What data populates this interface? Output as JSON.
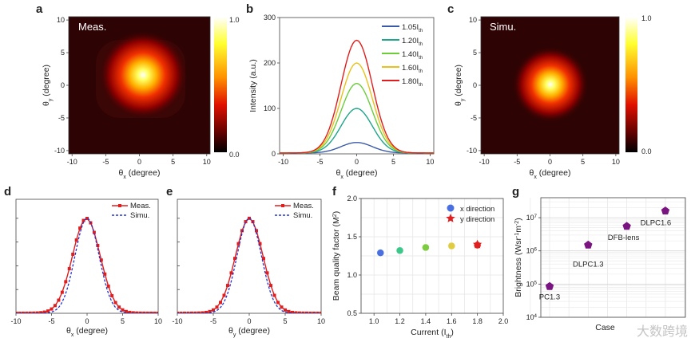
{
  "watermark": "大数跨境",
  "chart_data": [
    {
      "panel": "a",
      "type": "heatmap",
      "annotation": "Meas.",
      "xlabel": "θx (degree)",
      "ylabel": "θy (degree)",
      "xlim": [
        -10.5,
        10.5
      ],
      "ylim": [
        -10.5,
        10.5
      ],
      "xticks": [
        "-10",
        "-5",
        "0",
        "5",
        "10"
      ],
      "yticks": [
        "-10",
        "-5",
        "0",
        "5",
        "10"
      ],
      "colorbar": {
        "min_label": "0.0",
        "max_label": "1.0",
        "colormap": "hot"
      },
      "spot_center_deg": [
        0.5,
        0.8
      ],
      "spot_fwhm_deg": 4.6
    },
    {
      "panel": "b",
      "type": "line",
      "xlabel": "θx (degree)",
      "ylabel": "Intensity (a.u.)",
      "xlim": [
        -10.5,
        10.5
      ],
      "ylim": [
        0,
        300
      ],
      "xticks": [
        "-10",
        "-5",
        "0",
        "5",
        "10"
      ],
      "yticks": [
        "0",
        "100",
        "200",
        "300"
      ],
      "legend_position": "top-right",
      "series": [
        {
          "name": "1.05I",
          "sub": "th",
          "peak": 25,
          "color": "#3a5aa8"
        },
        {
          "name": "1.20I",
          "sub": "th",
          "peak": 100,
          "color": "#1fa58a"
        },
        {
          "name": "1.40I",
          "sub": "th",
          "peak": 155,
          "color": "#6ccc3c"
        },
        {
          "name": "1.60I",
          "sub": "th",
          "peak": 200,
          "color": "#e8c21a"
        },
        {
          "name": "1.80I",
          "sub": "th",
          "peak": 250,
          "color": "#e01e1e"
        }
      ],
      "fwhm_deg": 5.0,
      "baseline": 2
    },
    {
      "panel": "c",
      "type": "heatmap",
      "annotation": "Simu.",
      "xlabel": "θx (degree)",
      "ylabel": "θy (degree)",
      "xlim": [
        -10.5,
        10.5
      ],
      "ylim": [
        -10.5,
        10.5
      ],
      "xticks": [
        "-10",
        "-5",
        "0",
        "5",
        "10"
      ],
      "yticks": [
        "-10",
        "-5",
        "0",
        "5",
        "10"
      ],
      "colorbar": {
        "min_label": "0.0",
        "max_label": "1.0",
        "colormap": "hot"
      },
      "spot_center_deg": [
        0,
        0
      ],
      "spot_fwhm_deg": 4.0
    },
    {
      "panel": "d",
      "type": "line",
      "xlabel": "θx (degree)",
      "ylabel": "",
      "xlim": [
        -10,
        10
      ],
      "ylim": [
        0,
        1.2
      ],
      "xticks": [
        "-10",
        "-5",
        "0",
        "5",
        "10"
      ],
      "legend_position": "top-right",
      "series": [
        {
          "name": "Meas.",
          "color": "#e01e1e",
          "style": "solid-square-markers",
          "fwhm_deg": 4.6,
          "peak_x": -0.1
        },
        {
          "name": "Simu.",
          "color": "#2233cc",
          "style": "dashed",
          "fwhm_deg": 4.0,
          "peak_x": 0
        }
      ]
    },
    {
      "panel": "e",
      "type": "line",
      "xlabel": "θy (degree)",
      "ylabel": "",
      "xlim": [
        -10,
        10
      ],
      "ylim": [
        0,
        1.2
      ],
      "xticks": [
        "-10",
        "-5",
        "0",
        "5",
        "10"
      ],
      "legend_position": "top-right",
      "series": [
        {
          "name": "Meas.",
          "color": "#e01e1e",
          "style": "solid-square-markers",
          "fwhm_deg": 4.5,
          "peak_x": 0
        },
        {
          "name": "Simu.",
          "color": "#2233cc",
          "style": "dashed",
          "fwhm_deg": 4.0,
          "peak_x": 0
        }
      ]
    },
    {
      "panel": "f",
      "type": "scatter",
      "xlabel": "Current (Ith)",
      "ylabel": "Beam quality factor (M2)",
      "xlim": [
        0.9,
        2.0
      ],
      "ylim": [
        0.5,
        2.0
      ],
      "xticks": [
        "1.0",
        "1.2",
        "1.4",
        "1.6",
        "1.8",
        "2.0"
      ],
      "yticks": [
        "0.5",
        "1.0",
        "1.5",
        "2.0"
      ],
      "grid": true,
      "legend_position": "top-right",
      "legend": [
        "x direction",
        "y direction"
      ],
      "x": [
        1.05,
        1.2,
        1.4,
        1.6,
        1.8
      ],
      "series": [
        {
          "name": "x direction",
          "values": [
            1.29,
            1.32,
            1.36,
            1.38,
            1.39
          ],
          "colors": [
            "#4a6fe0",
            "#3cc88a",
            "#7ccc40",
            "#e0cc40",
            "#e02020"
          ]
        },
        {
          "name": "y direction",
          "values": [
            null,
            null,
            null,
            null,
            1.4
          ],
          "color": "#e02020"
        }
      ]
    },
    {
      "panel": "g",
      "type": "scatter",
      "xlabel": "Case",
      "ylabel": "Brightness (Wsr-1m-2)",
      "yscale": "log",
      "ylim": [
        10000,
        40000000
      ],
      "yticks": [
        "4",
        "5",
        "6",
        "7"
      ],
      "grid": true,
      "categories": [
        "PC1.3",
        "DLPC1.3",
        "DFB-lens",
        "DLPC1.6"
      ],
      "values": [
        85000,
        1500000,
        5500000,
        16000000
      ],
      "color": "#7a1480"
    }
  ],
  "panel_labels": [
    "a",
    "b",
    "c",
    "d",
    "e",
    "f",
    "g"
  ]
}
